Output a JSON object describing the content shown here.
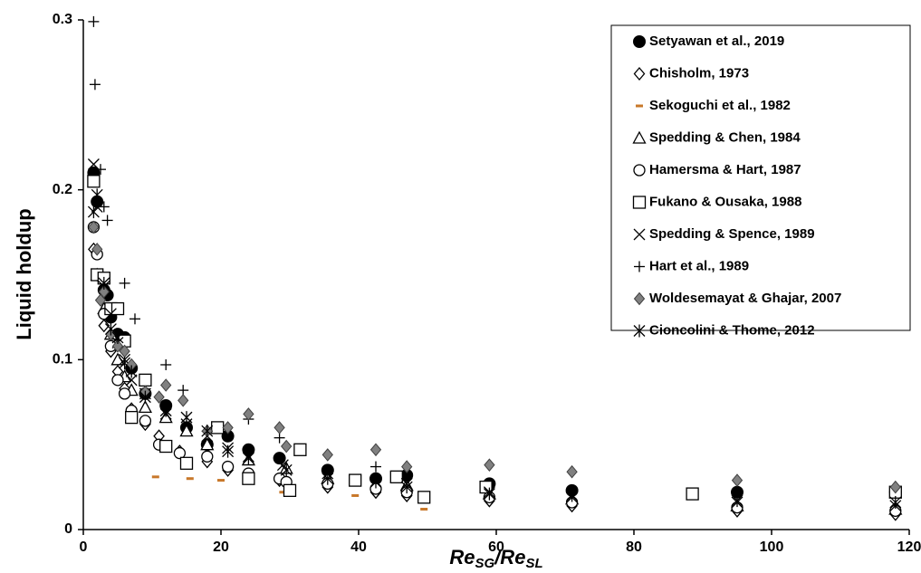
{
  "chart_data": {
    "type": "scatter",
    "y_label": "Liquid holdup",
    "x_label_parts": [
      "Re",
      "SG",
      "/Re",
      "SL"
    ],
    "xlim": [
      0,
      120
    ],
    "xticks": [
      0,
      20,
      40,
      60,
      80,
      100,
      120
    ],
    "ylim": [
      0,
      0.3
    ],
    "yticks": [
      0,
      0.1,
      0.2,
      0.3
    ],
    "grid": false,
    "legend": "upper right",
    "series": [
      {
        "name": "Setyawan et al., 2019",
        "marker": "circle-filled",
        "color": "#000000",
        "x": [
          1.5,
          2,
          3,
          3.5,
          4,
          5,
          6,
          7,
          9,
          12,
          15,
          18,
          21,
          24,
          28.5,
          35.5,
          42.5,
          47,
          59,
          71,
          95,
          118
        ],
        "values": [
          0.21,
          0.193,
          0.141,
          0.138,
          0.125,
          0.115,
          0.113,
          0.095,
          0.08,
          0.073,
          0.06,
          0.05,
          0.055,
          0.047,
          0.042,
          0.035,
          0.03,
          0.032,
          0.027,
          0.023,
          0.022,
          0.022
        ]
      },
      {
        "name": "Chisholm, 1973",
        "marker": "diamond-open",
        "color": "#000000",
        "x": [
          1.5,
          2,
          3,
          4,
          5,
          6,
          7,
          9,
          11,
          14,
          18,
          21,
          24,
          28.5,
          35.5,
          42.5,
          47,
          59,
          71,
          95,
          118
        ],
        "values": [
          0.165,
          0.15,
          0.12,
          0.105,
          0.093,
          0.083,
          0.071,
          0.062,
          0.055,
          0.046,
          0.04,
          0.035,
          0.032,
          0.029,
          0.025,
          0.022,
          0.02,
          0.017,
          0.014,
          0.011,
          0.009
        ]
      },
      {
        "name": "Sekoguchi et al., 1982",
        "marker": "dash",
        "color": "#c8782a",
        "x": [
          10.5,
          15.5,
          20,
          29,
          39.5,
          49.5
        ],
        "values": [
          0.031,
          0.03,
          0.029,
          0.022,
          0.02,
          0.012
        ]
      },
      {
        "name": "Spedding & Chen, 1984",
        "marker": "triangle-open",
        "color": "#000000",
        "x": [
          2,
          3,
          4,
          5,
          6,
          7,
          9,
          12,
          15,
          18,
          24,
          29.5,
          35.5,
          47,
          59,
          71,
          95,
          118
        ],
        "values": [
          0.15,
          0.13,
          0.115,
          0.1,
          0.09,
          0.082,
          0.072,
          0.066,
          0.058,
          0.05,
          0.041,
          0.036,
          0.03,
          0.026,
          0.021,
          0.018,
          0.014,
          0.012
        ]
      },
      {
        "name": "Hamersma & Hart, 1987",
        "marker": "circle-open",
        "color": "#000000",
        "x": [
          1.5,
          2,
          3,
          4,
          5,
          6,
          7,
          9,
          11,
          14,
          18,
          21,
          24,
          28.5,
          29.5,
          35.5,
          42.5,
          47,
          59,
          71,
          95,
          118
        ],
        "values": [
          0.178,
          0.162,
          0.127,
          0.108,
          0.088,
          0.08,
          0.07,
          0.064,
          0.05,
          0.045,
          0.043,
          0.037,
          0.033,
          0.03,
          0.028,
          0.027,
          0.024,
          0.022,
          0.019,
          0.016,
          0.013,
          0.011
        ]
      },
      {
        "name": "Fukano & Ousaka, 1988",
        "marker": "square-open",
        "color": "#000000",
        "x": [
          1.5,
          2,
          3,
          4,
          5,
          6,
          7,
          9,
          12,
          15,
          19.5,
          24,
          30,
          31.5,
          39.5,
          45.5,
          49.5,
          58.5,
          88.5,
          118
        ],
        "values": [
          0.205,
          0.15,
          0.148,
          0.13,
          0.13,
          0.111,
          0.066,
          0.088,
          0.049,
          0.039,
          0.06,
          0.03,
          0.023,
          0.047,
          0.029,
          0.031,
          0.019,
          0.025,
          0.021,
          0.022
        ]
      },
      {
        "name": "Spedding & Spence, 1989",
        "marker": "cross",
        "color": "#000000",
        "x": [
          1.5,
          2,
          3,
          4,
          5,
          6,
          7,
          9,
          12,
          15,
          18,
          21,
          24,
          29,
          35.5,
          47,
          59,
          71,
          95,
          118
        ],
        "values": [
          0.215,
          0.19,
          0.143,
          0.127,
          0.11,
          0.1,
          0.088,
          0.08,
          0.068,
          0.062,
          0.055,
          0.048,
          0.043,
          0.038,
          0.033,
          0.027,
          0.022,
          0.019,
          0.016,
          0.014
        ]
      },
      {
        "name": "Hart et al., 1989",
        "marker": "plus",
        "color": "#000000",
        "x": [
          1.5,
          1.7,
          2.5,
          3,
          3.5,
          6,
          7.5,
          12,
          14.5,
          24,
          28.5,
          42.5
        ],
        "values": [
          0.299,
          0.262,
          0.212,
          0.19,
          0.182,
          0.145,
          0.124,
          0.097,
          0.082,
          0.065,
          0.054,
          0.037
        ]
      },
      {
        "name": "Woldesemayat & Ghajar, 2007",
        "marker": "diamond-filled",
        "color": "#808080",
        "x": [
          1.5,
          2,
          2.5,
          3,
          4,
          5,
          6,
          7,
          9,
          11,
          12,
          14.5,
          18,
          21,
          24,
          28.5,
          29.5,
          35.5,
          42.5,
          47,
          59,
          71,
          95,
          118
        ],
        "values": [
          0.178,
          0.165,
          0.135,
          0.14,
          0.115,
          0.108,
          0.105,
          0.097,
          0.081,
          0.078,
          0.085,
          0.076,
          0.058,
          0.06,
          0.068,
          0.06,
          0.049,
          0.044,
          0.047,
          0.037,
          0.038,
          0.034,
          0.029,
          0.025
        ]
      },
      {
        "name": "Cioncolini & Thome, 2012",
        "marker": "asterisk",
        "color": "#000000",
        "x": [
          1.5,
          2,
          3,
          4,
          5,
          6,
          7,
          9,
          12,
          15,
          18,
          21,
          24,
          29.5,
          35.5,
          42.5,
          47,
          59,
          71,
          95,
          118
        ],
        "values": [
          0.187,
          0.197,
          0.145,
          0.118,
          0.113,
          0.098,
          0.093,
          0.078,
          0.07,
          0.066,
          0.058,
          0.046,
          0.042,
          0.035,
          0.03,
          0.028,
          0.025,
          0.021,
          0.02,
          0.017,
          0.016
        ]
      }
    ]
  }
}
